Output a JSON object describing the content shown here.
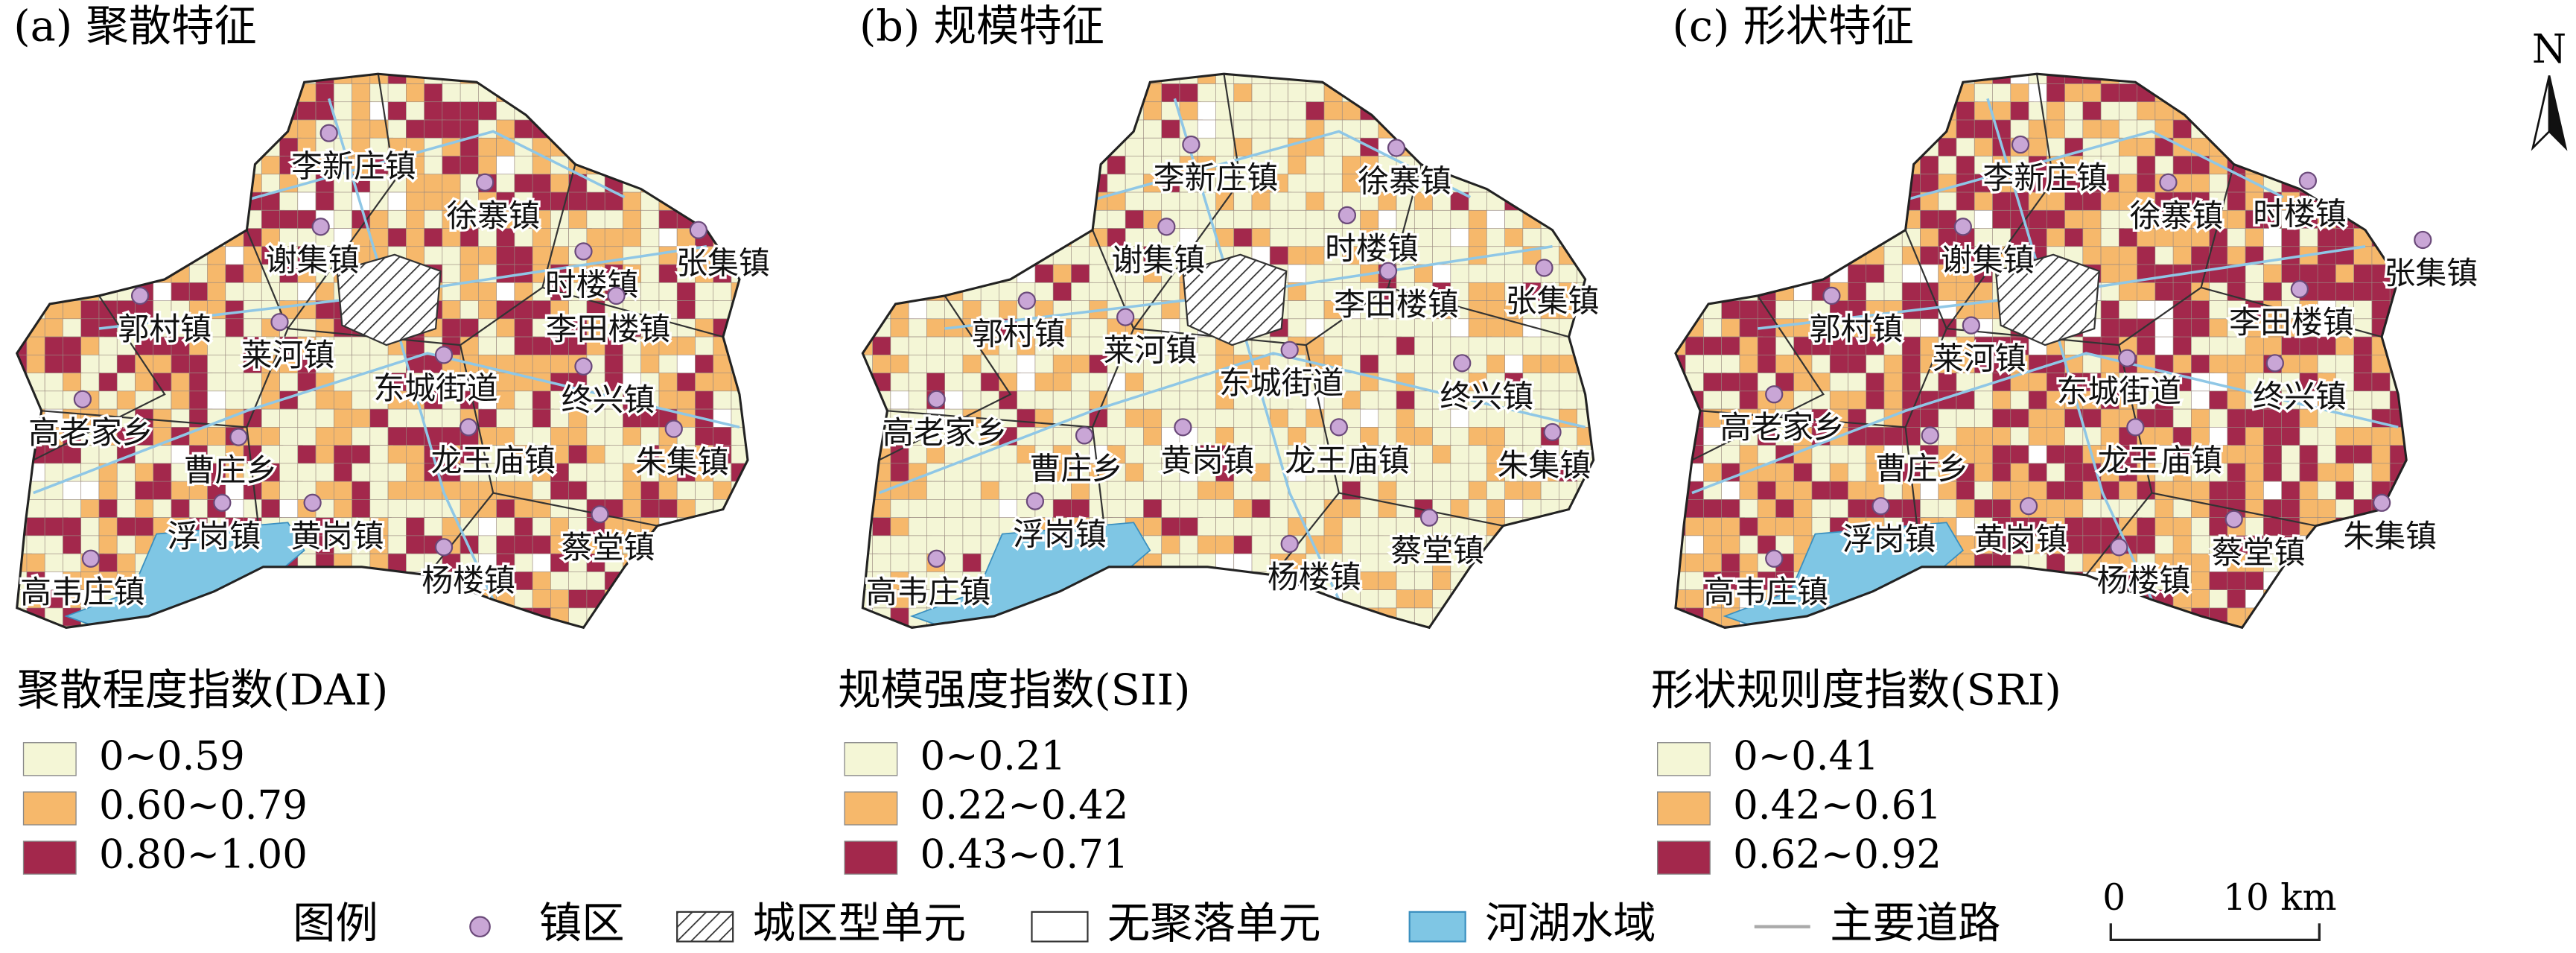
{
  "panels": [
    {
      "title": "(a) 聚散特征",
      "towns": [
        "李新庄镇",
        "徐寨镇",
        "谢集镇",
        "张集镇",
        "时楼镇",
        "李田楼镇",
        "郭村镇",
        "莱河镇",
        "东城街道",
        "终兴镇",
        "高老家乡",
        "曹庄乡",
        "龙王庙镇",
        "朱集镇",
        "浮岗镇",
        "黄岗镇",
        "蔡堂镇",
        "高韦庄镇",
        "杨楼镇"
      ],
      "legend_title": "聚散程度指数(DAI)",
      "legend_items": [
        "0~0.59",
        "0.60~0.79",
        "0.80~1.00"
      ]
    },
    {
      "title": "(b) 规模特征",
      "towns": [
        "李新庄镇",
        "徐寨镇",
        "谢集镇",
        "时楼镇",
        "张集镇",
        "郭村镇",
        "莱河镇",
        "李田楼镇",
        "东城街道",
        "终兴镇",
        "高老家乡",
        "曹庄乡",
        "黄岗镇",
        "龙王庙镇",
        "朱集镇",
        "浮岗镇",
        "蔡堂镇",
        "高韦庄镇",
        "杨楼镇"
      ],
      "legend_title": "规模强度指数(SII)",
      "legend_items": [
        "0~0.21",
        "0.22~0.42",
        "0.43~0.71"
      ]
    },
    {
      "title": "(c) 形状特征",
      "towns": [
        "李新庄镇",
        "徐寨镇",
        "时楼镇",
        "谢集镇",
        "张集镇",
        "李田楼镇",
        "郭村镇",
        "莱河镇",
        "东城街道",
        "终兴镇",
        "高老家乡",
        "曹庄乡",
        "龙王庙镇",
        "浮岗镇",
        "黄岗镇",
        "蔡堂镇",
        "朱集镇",
        "高韦庄镇",
        "杨楼镇"
      ],
      "legend_title": "形状规则度指数(SRI)",
      "legend_items": [
        "0~0.41",
        "0.42~0.61",
        "0.62~0.92"
      ]
    }
  ],
  "legend": {
    "title": "图例",
    "items": [
      "镇区",
      "城区型单元",
      "无聚落单元",
      "河湖水域",
      "主要道路"
    ]
  },
  "scale": {
    "labels": [
      "0",
      "10 km"
    ]
  },
  "north": "N"
}
